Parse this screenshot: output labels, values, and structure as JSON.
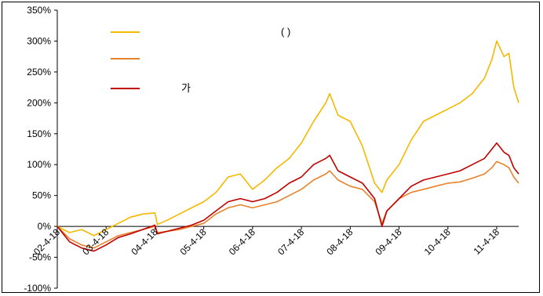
{
  "chart_data": {
    "type": "line",
    "title": "",
    "xlabel": "",
    "ylabel": "",
    "ylim": [
      -100,
      350
    ],
    "y_tick_labels": [
      "-100%",
      "-50%",
      "0%",
      "50%",
      "100%",
      "150%",
      "200%",
      "250%",
      "300%",
      "350%"
    ],
    "y_ticks": [
      -100,
      -50,
      0,
      50,
      100,
      150,
      200,
      250,
      300,
      350
    ],
    "x_tick_labels": [
      "02-4-18",
      "03-4-18",
      "04-4-18",
      "05-4-18",
      "06-4-18",
      "07-4-18",
      "08-4-18",
      "09-4-18",
      "10-4-18",
      "11-4-18"
    ],
    "x_ticks": [
      2002.25,
      2003.25,
      2004.25,
      2005.25,
      2006.25,
      2007.25,
      2008.25,
      2009.25,
      2010.25,
      2011.25
    ],
    "xlim": [
      2002.25,
      2011.7
    ],
    "legend": {
      "placement": "top-left",
      "entries": [
        {
          "text": "(      )",
          "series_index": 0
        },
        {
          "text": "",
          "series_index": 1
        },
        {
          "text": "가",
          "series_index": 2
        }
      ]
    },
    "series": [
      {
        "color": "#F5B800",
        "x": [
          2002.25,
          2002.5,
          2002.75,
          2003.0,
          2003.25,
          2003.5,
          2003.75,
          2004.0,
          2004.25,
          2004.3,
          2004.5,
          2004.75,
          2005.0,
          2005.25,
          2005.5,
          2005.75,
          2006.0,
          2006.25,
          2006.5,
          2006.75,
          2007.0,
          2007.25,
          2007.5,
          2007.75,
          2007.83,
          2008.0,
          2008.25,
          2008.5,
          2008.75,
          2008.9,
          2009.0,
          2009.25,
          2009.5,
          2009.75,
          2010.0,
          2010.25,
          2010.5,
          2010.75,
          2011.0,
          2011.15,
          2011.25,
          2011.4,
          2011.5,
          2011.6,
          2011.7
        ],
        "y": [
          0,
          -10,
          -5,
          -15,
          -5,
          5,
          15,
          20,
          22,
          3,
          10,
          20,
          30,
          40,
          55,
          80,
          85,
          60,
          75,
          95,
          110,
          135,
          170,
          200,
          215,
          180,
          170,
          130,
          70,
          55,
          75,
          100,
          140,
          170,
          180,
          190,
          200,
          215,
          240,
          270,
          300,
          275,
          280,
          225,
          200
        ]
      },
      {
        "color": "#E8822A",
        "x": [
          2002.25,
          2002.5,
          2002.75,
          2003.0,
          2003.25,
          2003.5,
          2003.75,
          2004.0,
          2004.25,
          2004.3,
          2004.5,
          2004.75,
          2005.0,
          2005.25,
          2005.5,
          2005.75,
          2006.0,
          2006.25,
          2006.5,
          2006.75,
          2007.0,
          2007.25,
          2007.5,
          2007.75,
          2007.83,
          2008.0,
          2008.25,
          2008.5,
          2008.75,
          2008.9,
          2009.0,
          2009.25,
          2009.5,
          2009.75,
          2010.0,
          2010.25,
          2010.5,
          2010.75,
          2011.0,
          2011.15,
          2011.25,
          2011.4,
          2011.5,
          2011.6,
          2011.7
        ],
        "y": [
          0,
          -20,
          -30,
          -35,
          -25,
          -15,
          -10,
          -5,
          0,
          -10,
          -8,
          -5,
          0,
          5,
          20,
          30,
          35,
          30,
          35,
          40,
          50,
          60,
          75,
          85,
          90,
          75,
          65,
          60,
          40,
          5,
          25,
          45,
          55,
          60,
          65,
          70,
          72,
          78,
          85,
          95,
          105,
          100,
          95,
          80,
          70
        ]
      },
      {
        "color": "#C00000",
        "x": [
          2002.25,
          2002.5,
          2002.75,
          2003.0,
          2003.25,
          2003.5,
          2003.75,
          2004.0,
          2004.25,
          2004.3,
          2004.5,
          2004.75,
          2005.0,
          2005.25,
          2005.5,
          2005.75,
          2006.0,
          2006.25,
          2006.5,
          2006.75,
          2007.0,
          2007.25,
          2007.5,
          2007.75,
          2007.83,
          2008.0,
          2008.25,
          2008.5,
          2008.75,
          2008.9,
          2009.0,
          2009.25,
          2009.5,
          2009.75,
          2010.0,
          2010.25,
          2010.5,
          2010.75,
          2011.0,
          2011.15,
          2011.25,
          2011.4,
          2011.5,
          2011.6,
          2011.7
        ],
        "y": [
          0,
          -25,
          -35,
          -40,
          -30,
          -18,
          -12,
          -5,
          2,
          -12,
          -8,
          -3,
          2,
          10,
          25,
          40,
          45,
          40,
          45,
          55,
          70,
          80,
          100,
          110,
          115,
          90,
          80,
          70,
          45,
          0,
          25,
          45,
          65,
          75,
          80,
          85,
          90,
          100,
          110,
          125,
          135,
          120,
          115,
          95,
          85
        ]
      }
    ]
  }
}
